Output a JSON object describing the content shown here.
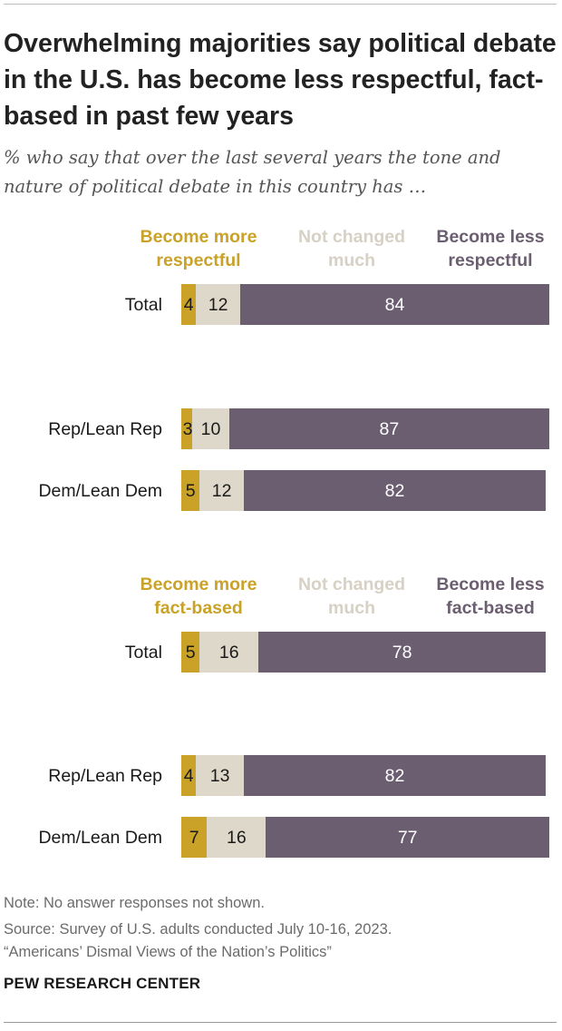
{
  "title": "Overwhelming majorities say political debate in the U.S. has become less respectful, fact-based in past few years",
  "subtitle": "% who say that over the last several years the tone and nature of political debate in this country has …",
  "colors": {
    "more": "#C9A227",
    "unchanged": "#DDD8CA",
    "less": "#6B5E70",
    "legend_more": "#C9A227",
    "legend_unchanged": "#D6D1C4",
    "legend_less": "#6B5E70"
  },
  "chart_data": [
    {
      "type": "bar",
      "orientation": "horizontal",
      "stacked": true,
      "xlim": [
        0,
        100
      ],
      "categories": [
        "Total",
        "Rep/Lean Rep",
        "Dem/Lean Dem"
      ],
      "series": [
        {
          "name": "Become more respectful",
          "values": [
            4,
            3,
            5
          ]
        },
        {
          "name": "Not changed much",
          "values": [
            12,
            10,
            12
          ]
        },
        {
          "name": "Become less respectful",
          "values": [
            84,
            87,
            82
          ]
        }
      ],
      "legend": [
        "Become more\nrespectful",
        "Not changed\nmuch",
        "Become less\nrespectful"
      ],
      "legend_position": "top"
    },
    {
      "type": "bar",
      "orientation": "horizontal",
      "stacked": true,
      "xlim": [
        0,
        100
      ],
      "categories": [
        "Total",
        "Rep/Lean Rep",
        "Dem/Lean Dem"
      ],
      "series": [
        {
          "name": "Become more fact-based",
          "values": [
            5,
            4,
            7
          ]
        },
        {
          "name": "Not changed much",
          "values": [
            16,
            13,
            16
          ]
        },
        {
          "name": "Become less fact-based",
          "values": [
            78,
            82,
            77
          ]
        }
      ],
      "legend": [
        "Become more\nfact-based",
        "Not changed\nmuch",
        "Become less\nfact-based"
      ],
      "legend_position": "top"
    }
  ],
  "footer": {
    "note": "Note: No answer responses not shown.",
    "source": "Source: Survey of U.S. adults conducted July 10-16, 2023.",
    "report": "“Americans’ Dismal Views of the Nation’s Politics”",
    "brand": "PEW RESEARCH CENTER"
  }
}
